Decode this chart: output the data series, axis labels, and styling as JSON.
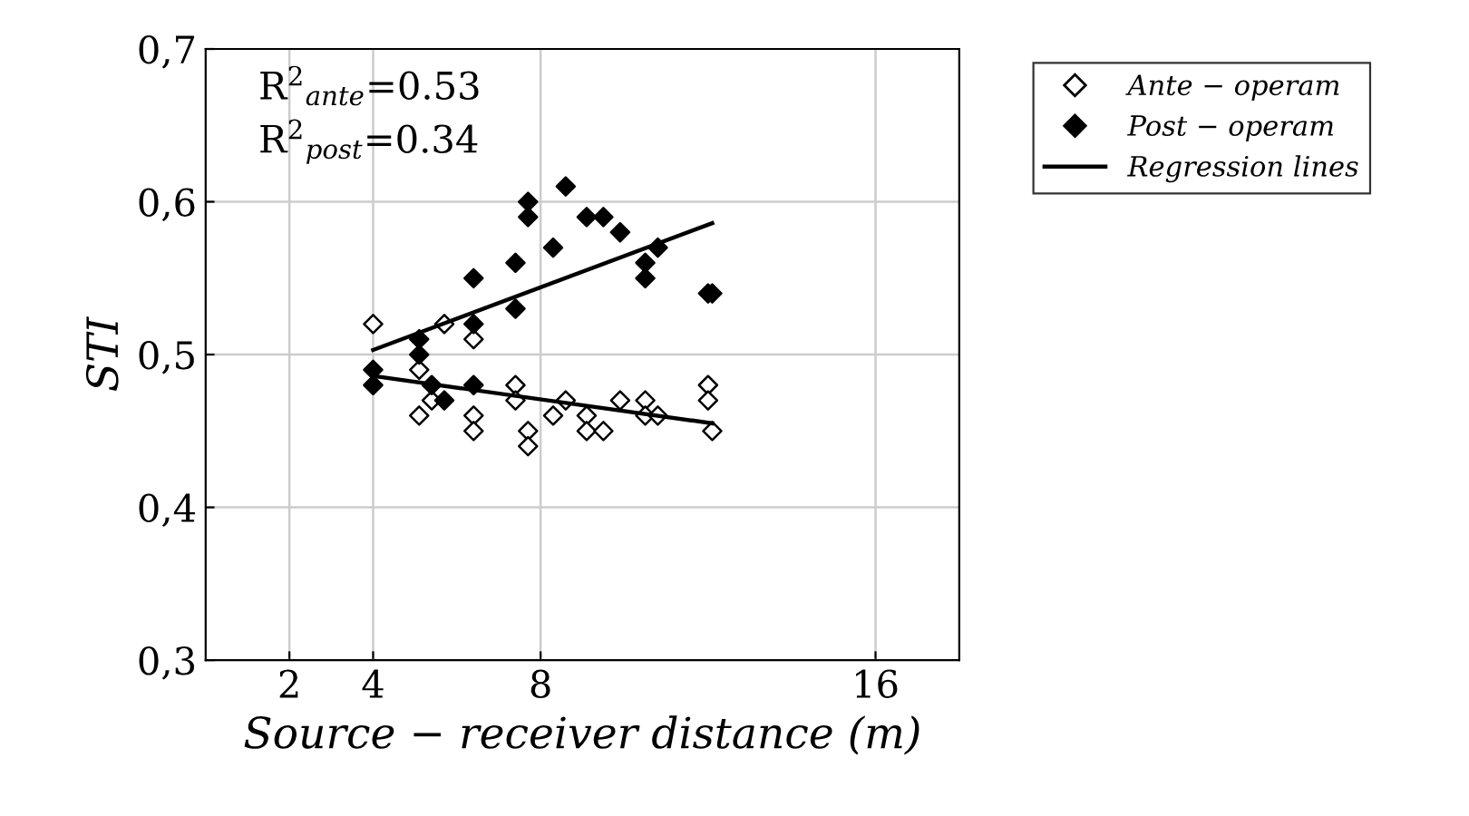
{
  "chart_data": {
    "type": "scatter",
    "xlabel": "Source − receiver distance (m)",
    "ylabel": "STI",
    "xlim": [
      0,
      18
    ],
    "xticks": [
      2,
      4,
      8,
      16
    ],
    "ylim": [
      0.3,
      0.7
    ],
    "yticks": [
      {
        "value": 0.3,
        "label": "0,3"
      },
      {
        "value": 0.4,
        "label": "0,4"
      },
      {
        "value": 0.5,
        "label": "0,5"
      },
      {
        "value": 0.6,
        "label": "0,6"
      },
      {
        "value": 0.7,
        "label": "0,7"
      }
    ],
    "grid": true,
    "legend": "top right",
    "annotations": [
      "R$^{2}$$_{ante}$=0.53",
      "R$^{2}$$_{post}$=0.34"
    ],
    "series": [
      {
        "name": "Ante − operam",
        "marker": "diamond",
        "color": "#ffffff",
        "x": [
          4,
          5.1,
          5.1,
          5.4,
          5.7,
          6.4,
          6.4,
          6.4,
          7.4,
          7.4,
          7.7,
          7.7,
          8.3,
          8.6,
          9.1,
          9.1,
          9.5,
          9.9,
          10.5,
          10.5,
          10.8,
          12.0,
          12.0,
          12.1
        ],
        "values": [
          0.52,
          0.49,
          0.46,
          0.47,
          0.52,
          0.51,
          0.46,
          0.45,
          0.48,
          0.47,
          0.45,
          0.44,
          0.46,
          0.47,
          0.46,
          0.45,
          0.45,
          0.47,
          0.47,
          0.46,
          0.46,
          0.48,
          0.47,
          0.45
        ]
      },
      {
        "name": "Post − operam",
        "marker": "diamond",
        "color": "#000000",
        "x": [
          4,
          4,
          5.1,
          5.1,
          5.4,
          5.7,
          6.4,
          6.4,
          6.4,
          7.4,
          7.4,
          7.7,
          7.7,
          8.3,
          8.6,
          9.1,
          9.5,
          9.9,
          10.5,
          10.5,
          10.8,
          12.0,
          12.1
        ],
        "values": [
          0.49,
          0.48,
          0.51,
          0.5,
          0.48,
          0.47,
          0.55,
          0.52,
          0.48,
          0.56,
          0.53,
          0.6,
          0.59,
          0.57,
          0.61,
          0.59,
          0.59,
          0.58,
          0.56,
          0.55,
          0.57,
          0.54,
          0.54
        ]
      },
      {
        "name": "Regression lines",
        "type": "line",
        "color": "#000000",
        "x": [
          4,
          12.1
        ],
        "values": [
          0.486,
          0.455
        ]
      },
      {
        "type": "line",
        "color": "#000000",
        "x": [
          4,
          12.1
        ],
        "values": [
          0.503,
          0.586
        ]
      }
    ]
  }
}
